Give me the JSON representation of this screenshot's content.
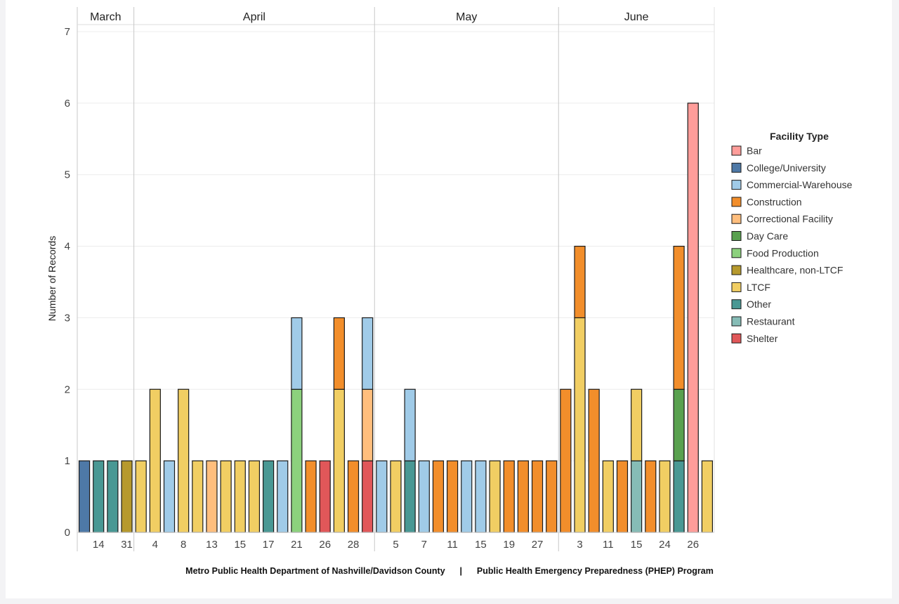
{
  "chart_data": {
    "type": "bar",
    "stacked": true,
    "ylabel": "Number of Records",
    "ylim": [
      0,
      7
    ],
    "yticks": [
      0,
      1,
      2,
      3,
      4,
      5,
      6,
      7
    ],
    "months": [
      {
        "name": "March",
        "first_bar": 0,
        "last_bar": 3
      },
      {
        "name": "April",
        "first_bar": 4,
        "last_bar": 20
      },
      {
        "name": "May",
        "first_bar": 21,
        "last_bar": 33
      },
      {
        "name": "June",
        "first_bar": 34,
        "last_bar": 44
      }
    ],
    "bars": [
      {
        "segments": [
          [
            "College/University",
            1
          ]
        ]
      },
      {
        "segments": [
          [
            "Other",
            1
          ]
        ]
      },
      {
        "segments": [
          [
            "Other",
            1
          ]
        ]
      },
      {
        "segments": [
          [
            "Healthcare, non-LTCF",
            1
          ]
        ]
      },
      {
        "segments": [
          [
            "LTCF",
            1
          ]
        ]
      },
      {
        "segments": [
          [
            "LTCF",
            2
          ]
        ]
      },
      {
        "segments": [
          [
            "Commercial-Warehouse",
            1
          ]
        ]
      },
      {
        "segments": [
          [
            "LTCF",
            2
          ]
        ]
      },
      {
        "segments": [
          [
            "LTCF",
            1
          ]
        ]
      },
      {
        "segments": [
          [
            "Correctional Facility",
            1
          ]
        ]
      },
      {
        "segments": [
          [
            "LTCF",
            1
          ]
        ]
      },
      {
        "segments": [
          [
            "LTCF",
            1
          ]
        ]
      },
      {
        "segments": [
          [
            "LTCF",
            1
          ]
        ]
      },
      {
        "segments": [
          [
            "Other",
            1
          ]
        ]
      },
      {
        "segments": [
          [
            "Commercial-Warehouse",
            1
          ]
        ]
      },
      {
        "segments": [
          [
            "Food Production",
            2
          ],
          [
            "Commercial-Warehouse",
            1
          ]
        ]
      },
      {
        "segments": [
          [
            "Construction",
            1
          ]
        ]
      },
      {
        "segments": [
          [
            "Shelter",
            1
          ]
        ]
      },
      {
        "segments": [
          [
            "LTCF",
            2
          ],
          [
            "Construction",
            1
          ]
        ]
      },
      {
        "segments": [
          [
            "Construction",
            1
          ]
        ]
      },
      {
        "segments": [
          [
            "Shelter",
            1
          ],
          [
            "Correctional Facility",
            1
          ],
          [
            "Commercial-Warehouse",
            1
          ]
        ]
      },
      {
        "segments": [
          [
            "Commercial-Warehouse",
            1
          ]
        ]
      },
      {
        "segments": [
          [
            "LTCF",
            1
          ]
        ]
      },
      {
        "segments": [
          [
            "Other",
            1
          ],
          [
            "Commercial-Warehouse",
            1
          ]
        ]
      },
      {
        "segments": [
          [
            "Commercial-Warehouse",
            1
          ]
        ]
      },
      {
        "segments": [
          [
            "Construction",
            1
          ]
        ]
      },
      {
        "segments": [
          [
            "Construction",
            1
          ]
        ]
      },
      {
        "segments": [
          [
            "Commercial-Warehouse",
            1
          ]
        ]
      },
      {
        "segments": [
          [
            "Commercial-Warehouse",
            1
          ]
        ]
      },
      {
        "segments": [
          [
            "LTCF",
            1
          ]
        ]
      },
      {
        "segments": [
          [
            "Construction",
            1
          ]
        ]
      },
      {
        "segments": [
          [
            "Construction",
            1
          ]
        ]
      },
      {
        "segments": [
          [
            "Construction",
            1
          ]
        ]
      },
      {
        "segments": [
          [
            "Construction",
            1
          ]
        ]
      },
      {
        "segments": [
          [
            "Construction",
            2
          ]
        ]
      },
      {
        "segments": [
          [
            "LTCF",
            3
          ],
          [
            "Construction",
            1
          ]
        ]
      },
      {
        "segments": [
          [
            "Construction",
            2
          ]
        ]
      },
      {
        "segments": [
          [
            "LTCF",
            1
          ]
        ]
      },
      {
        "segments": [
          [
            "Construction",
            1
          ]
        ]
      },
      {
        "segments": [
          [
            "Restaurant",
            1
          ],
          [
            "LTCF",
            1
          ]
        ]
      },
      {
        "segments": [
          [
            "Construction",
            1
          ]
        ]
      },
      {
        "segments": [
          [
            "LTCF",
            1
          ]
        ]
      },
      {
        "segments": [
          [
            "Other",
            1
          ],
          [
            "Day Care",
            1
          ],
          [
            "Construction",
            2
          ]
        ]
      },
      {
        "segments": [
          [
            "Bar",
            6
          ]
        ]
      },
      {
        "segments": [
          [
            "LTCF",
            1
          ]
        ]
      }
    ],
    "x_tick_labels": [
      {
        "bar": 1,
        "label": "14"
      },
      {
        "bar": 3,
        "label": "31"
      },
      {
        "bar": 5,
        "label": "4"
      },
      {
        "bar": 7,
        "label": "8"
      },
      {
        "bar": 9,
        "label": "13"
      },
      {
        "bar": 11,
        "label": "15"
      },
      {
        "bar": 13,
        "label": "17"
      },
      {
        "bar": 15,
        "label": "21"
      },
      {
        "bar": 17,
        "label": "26"
      },
      {
        "bar": 19,
        "label": "28"
      },
      {
        "bar": 22,
        "label": "5"
      },
      {
        "bar": 24,
        "label": "7"
      },
      {
        "bar": 26,
        "label": "11"
      },
      {
        "bar": 28,
        "label": "15"
      },
      {
        "bar": 30,
        "label": "19"
      },
      {
        "bar": 32,
        "label": "27"
      },
      {
        "bar": 35,
        "label": "3"
      },
      {
        "bar": 37,
        "label": "11"
      },
      {
        "bar": 39,
        "label": "15"
      },
      {
        "bar": 41,
        "label": "24"
      },
      {
        "bar": 43,
        "label": "26"
      }
    ],
    "legend": {
      "title": "Facility Type",
      "position": "right",
      "items": [
        {
          "name": "Bar",
          "color": "#ff9d9a"
        },
        {
          "name": "College/University",
          "color": "#4e79a7"
        },
        {
          "name": "Commercial-Warehouse",
          "color": "#a0cbe8"
        },
        {
          "name": "Construction",
          "color": "#f28e2b"
        },
        {
          "name": "Correctional Facility",
          "color": "#ffbe7d"
        },
        {
          "name": "Day Care",
          "color": "#59a14f"
        },
        {
          "name": "Food Production",
          "color": "#8cd17d"
        },
        {
          "name": "Healthcare, non-LTCF",
          "color": "#b6992d"
        },
        {
          "name": "LTCF",
          "color": "#f1ce63"
        },
        {
          "name": "Other",
          "color": "#499894"
        },
        {
          "name": "Restaurant",
          "color": "#86bcb6"
        },
        {
          "name": "Shelter",
          "color": "#e15759"
        }
      ]
    }
  },
  "footer": {
    "left": "Metro Public Health Department of Nashville/Davidson County",
    "separator": "|",
    "right": "Public Health Emergency Preparedness (PHEP) Program"
  }
}
